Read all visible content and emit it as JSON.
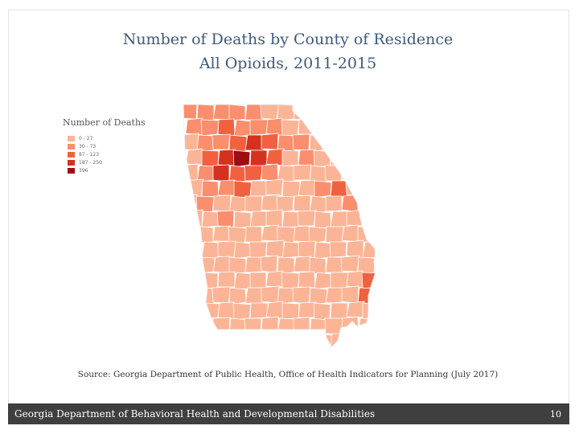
{
  "title": {
    "line1": "Number of Deaths by County of Residence",
    "line2": "All Opioids, 2011-2015"
  },
  "legend": {
    "title": "Number of Deaths",
    "items": [
      {
        "label": "0 - 27",
        "color": "#fcb497"
      },
      {
        "label": "30 - 73",
        "color": "#fb8e6d"
      },
      {
        "label": "87 - 123",
        "color": "#f2613f"
      },
      {
        "label": "187 - 250",
        "color": "#d5311f"
      },
      {
        "label": "396",
        "color": "#9e0d12"
      }
    ]
  },
  "map": {
    "region": "Georgia",
    "stroke_color": "#ffffff",
    "base_color": "#fcb497"
  },
  "source": "Source: Georgia Department of Public Health, Office of Health Indicators for Planning (July 2017)",
  "footer": {
    "organization": "Georgia Department of Behavioral Health and Developmental Disabilities",
    "page_number": "10"
  }
}
